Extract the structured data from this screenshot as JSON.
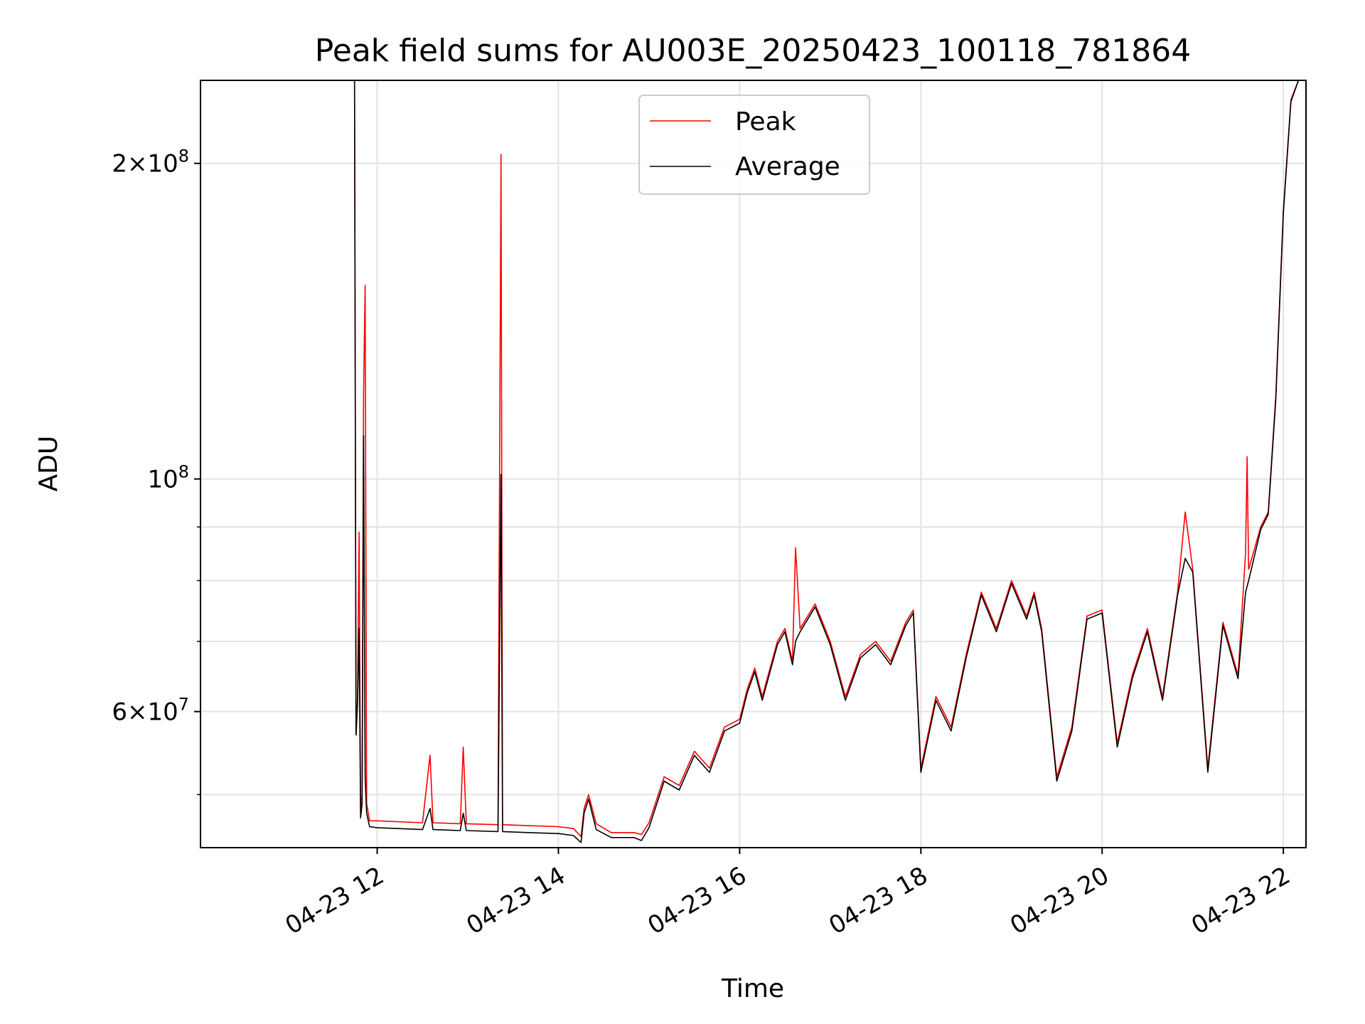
{
  "chart_data": {
    "type": "line",
    "title": "Peak field sums for AU003E_20250423_100118_781864",
    "xlabel": "Time",
    "ylabel": "ADU",
    "yscale": "log",
    "ylim": [
      44500000,
      240000000
    ],
    "xlim": [
      "2025-04-23 10:03",
      "2025-04-23 22:15"
    ],
    "grid": true,
    "legend_position": "upper-center",
    "x_ticks": [
      {
        "x": "2025-04-23 12:00",
        "label": "04-23 12"
      },
      {
        "x": "2025-04-23 14:00",
        "label": "04-23 14"
      },
      {
        "x": "2025-04-23 16:00",
        "label": "04-23 16"
      },
      {
        "x": "2025-04-23 18:00",
        "label": "04-23 18"
      },
      {
        "x": "2025-04-23 20:00",
        "label": "04-23 20"
      },
      {
        "x": "2025-04-23 22:00",
        "label": "04-23 22"
      }
    ],
    "y_major_ticks": [
      {
        "value": 60000000,
        "mantissa": "6",
        "exp": "7"
      },
      {
        "value": 100000000,
        "mantissa": "",
        "exp": "8"
      },
      {
        "value": 200000000,
        "mantissa": "2",
        "exp": "8"
      }
    ],
    "y_minor_gridlines": [
      50000000,
      70000000,
      80000000,
      90000000
    ],
    "series": [
      {
        "name": "Peak",
        "color": "#ff0000",
        "points": [
          [
            "10:03",
            240000000
          ],
          [
            "11:45",
            240000000
          ],
          [
            "11:46",
            57000000
          ],
          [
            "11:47",
            62000000
          ],
          [
            "11:48",
            89000000
          ],
          [
            "11:49",
            48000000
          ],
          [
            "11:50",
            50000000
          ],
          [
            "11:51",
            121000000
          ],
          [
            "11:52",
            153000000
          ],
          [
            "11:53",
            49000000
          ],
          [
            "11:55",
            47200000
          ],
          [
            "12:00",
            47200000
          ],
          [
            "12:30",
            47000000
          ],
          [
            "12:35",
            54500000
          ],
          [
            "12:37",
            47000000
          ],
          [
            "12:55",
            46900000
          ],
          [
            "12:57",
            55500000
          ],
          [
            "12:59",
            46900000
          ],
          [
            "13:20",
            46800000
          ],
          [
            "13:22",
            204000000
          ],
          [
            "13:23",
            46800000
          ],
          [
            "13:40",
            46700000
          ],
          [
            "14:00",
            46600000
          ],
          [
            "14:10",
            46400000
          ],
          [
            "14:15",
            45600000
          ],
          [
            "14:17",
            48500000
          ],
          [
            "14:20",
            50000000
          ],
          [
            "14:25",
            46900000
          ],
          [
            "14:35",
            46000000
          ],
          [
            "14:50",
            46000000
          ],
          [
            "14:55",
            45800000
          ],
          [
            "15:00",
            47000000
          ],
          [
            "15:10",
            52000000
          ],
          [
            "15:20",
            51000000
          ],
          [
            "15:30",
            55000000
          ],
          [
            "15:40",
            53000000
          ],
          [
            "15:50",
            58000000
          ],
          [
            "16:00",
            59000000
          ],
          [
            "16:05",
            63000000
          ],
          [
            "16:10",
            66000000
          ],
          [
            "16:15",
            62000000
          ],
          [
            "16:25",
            70000000
          ],
          [
            "16:30",
            72000000
          ],
          [
            "16:35",
            67000000
          ],
          [
            "16:37",
            86000000
          ],
          [
            "16:40",
            72000000
          ],
          [
            "16:50",
            76000000
          ],
          [
            "17:00",
            70000000
          ],
          [
            "17:10",
            62000000
          ],
          [
            "17:20",
            68000000
          ],
          [
            "17:30",
            70000000
          ],
          [
            "17:40",
            67000000
          ],
          [
            "17:50",
            73000000
          ],
          [
            "17:55",
            75000000
          ],
          [
            "18:00",
            53000000
          ],
          [
            "18:10",
            62000000
          ],
          [
            "18:20",
            58000000
          ],
          [
            "18:30",
            68000000
          ],
          [
            "18:40",
            78000000
          ],
          [
            "18:50",
            72000000
          ],
          [
            "19:00",
            80000000
          ],
          [
            "19:10",
            74000000
          ],
          [
            "19:15",
            78000000
          ],
          [
            "19:20",
            72000000
          ],
          [
            "19:30",
            52000000
          ],
          [
            "19:40",
            58000000
          ],
          [
            "19:50",
            74000000
          ],
          [
            "20:00",
            75000000
          ],
          [
            "20:10",
            56000000
          ],
          [
            "20:20",
            65000000
          ],
          [
            "20:30",
            72000000
          ],
          [
            "20:40",
            62000000
          ],
          [
            "20:50",
            78000000
          ],
          [
            "20:55",
            93000000
          ],
          [
            "21:00",
            82000000
          ],
          [
            "21:10",
            53000000
          ],
          [
            "21:20",
            73000000
          ],
          [
            "21:30",
            65000000
          ],
          [
            "21:35",
            85000000
          ],
          [
            "21:36",
            105000000
          ],
          [
            "21:37",
            82000000
          ],
          [
            "21:45",
            90000000
          ],
          [
            "21:50",
            93000000
          ],
          [
            "21:55",
            120000000
          ],
          [
            "22:00",
            180000000
          ],
          [
            "22:05",
            230000000
          ],
          [
            "22:10",
            240000000
          ]
        ]
      },
      {
        "name": "Average",
        "color": "#000000",
        "points": [
          [
            "10:03",
            240000000
          ],
          [
            "11:45",
            240000000
          ],
          [
            "11:46",
            57000000
          ],
          [
            "11:47",
            61000000
          ],
          [
            "11:48",
            72000000
          ],
          [
            "11:49",
            47500000
          ],
          [
            "11:50",
            49000000
          ],
          [
            "11:51",
            110000000
          ],
          [
            "11:52",
            52000000
          ],
          [
            "11:53",
            48000000
          ],
          [
            "11:55",
            46600000
          ],
          [
            "12:00",
            46500000
          ],
          [
            "12:30",
            46300000
          ],
          [
            "12:35",
            48500000
          ],
          [
            "12:37",
            46300000
          ],
          [
            "12:55",
            46200000
          ],
          [
            "12:57",
            48000000
          ],
          [
            "12:59",
            46200000
          ],
          [
            "13:20",
            46100000
          ],
          [
            "13:22",
            101000000
          ],
          [
            "13:23",
            46100000
          ],
          [
            "13:40",
            46000000
          ],
          [
            "14:00",
            45900000
          ],
          [
            "14:10",
            45700000
          ],
          [
            "14:15",
            45000000
          ],
          [
            "14:17",
            48000000
          ],
          [
            "14:20",
            49500000
          ],
          [
            "14:25",
            46300000
          ],
          [
            "14:35",
            45500000
          ],
          [
            "14:50",
            45500000
          ],
          [
            "14:55",
            45200000
          ],
          [
            "15:00",
            46500000
          ],
          [
            "15:10",
            51500000
          ],
          [
            "15:20",
            50500000
          ],
          [
            "15:30",
            54500000
          ],
          [
            "15:40",
            52500000
          ],
          [
            "15:50",
            57500000
          ],
          [
            "16:00",
            58500000
          ],
          [
            "16:05",
            62500000
          ],
          [
            "16:10",
            65500000
          ],
          [
            "16:15",
            61500000
          ],
          [
            "16:25",
            69500000
          ],
          [
            "16:30",
            71500000
          ],
          [
            "16:35",
            66500000
          ],
          [
            "16:37",
            70000000
          ],
          [
            "16:40",
            71500000
          ],
          [
            "16:50",
            75500000
          ],
          [
            "17:00",
            69500000
          ],
          [
            "17:10",
            61500000
          ],
          [
            "17:20",
            67500000
          ],
          [
            "17:30",
            69500000
          ],
          [
            "17:40",
            66500000
          ],
          [
            "17:50",
            72500000
          ],
          [
            "17:55",
            74500000
          ],
          [
            "18:00",
            52500000
          ],
          [
            "18:10",
            61500000
          ],
          [
            "18:20",
            57500000
          ],
          [
            "18:30",
            67500000
          ],
          [
            "18:40",
            77500000
          ],
          [
            "18:50",
            71500000
          ],
          [
            "19:00",
            79500000
          ],
          [
            "19:10",
            73500000
          ],
          [
            "19:15",
            77500000
          ],
          [
            "19:20",
            71500000
          ],
          [
            "19:30",
            51500000
          ],
          [
            "19:40",
            57500000
          ],
          [
            "19:50",
            73500000
          ],
          [
            "20:00",
            74500000
          ],
          [
            "20:10",
            55500000
          ],
          [
            "20:20",
            64500000
          ],
          [
            "20:30",
            71500000
          ],
          [
            "20:40",
            61500000
          ],
          [
            "20:50",
            77500000
          ],
          [
            "20:55",
            84000000
          ],
          [
            "21:00",
            81500000
          ],
          [
            "21:10",
            52500000
          ],
          [
            "21:20",
            72500000
          ],
          [
            "21:30",
            64500000
          ],
          [
            "21:35",
            78000000
          ],
          [
            "21:36",
            79000000
          ],
          [
            "21:37",
            80000000
          ],
          [
            "21:45",
            89500000
          ],
          [
            "21:50",
            92500000
          ],
          [
            "21:55",
            119000000
          ],
          [
            "22:00",
            179000000
          ],
          [
            "22:05",
            229000000
          ],
          [
            "22:10",
            240000000
          ]
        ]
      }
    ]
  }
}
